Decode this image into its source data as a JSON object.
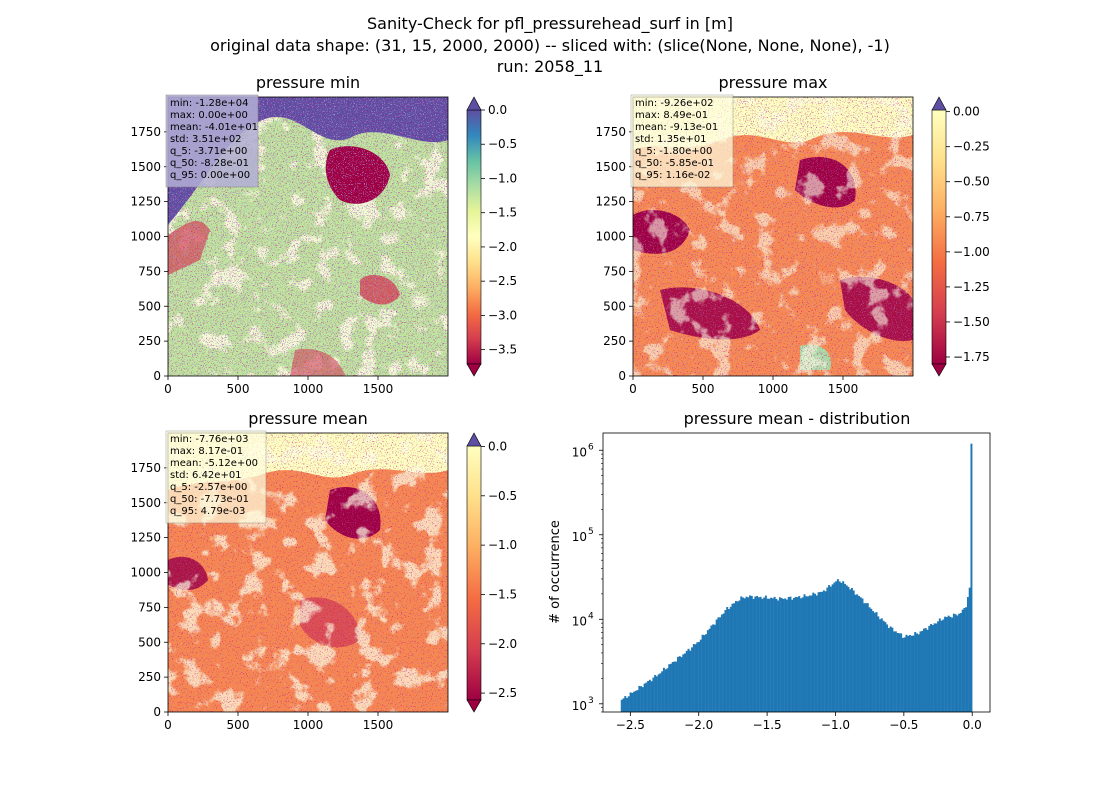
{
  "figure": {
    "suptitle_lines": [
      "Sanity-Check for pfl_pressurehead_surf in [m]",
      "original data shape: (31, 15, 2000, 2000) -- sliced with: (slice(None, None, None), -1)",
      "run: 2058_11"
    ]
  },
  "chart_data": [
    {
      "type": "heatmap",
      "title": "pressure min",
      "x_ticks": [
        "0",
        "500",
        "1000",
        "1500"
      ],
      "y_ticks": [
        "0",
        "250",
        "500",
        "750",
        "1000",
        "1250",
        "1500",
        "1750"
      ],
      "xlim": [
        0,
        2000
      ],
      "ylim": [
        0,
        2000
      ],
      "colormap": "Spectral",
      "colorbar": {
        "ticks": [
          "0.0",
          "−0.5",
          "−1.0",
          "−1.5",
          "−2.0",
          "−2.5",
          "−3.0",
          "−3.5"
        ],
        "tick_values": [
          0.0,
          -0.5,
          -1.0,
          -1.5,
          -2.0,
          -2.5,
          -3.0,
          -3.5
        ],
        "range": [
          -3.71,
          0.0
        ],
        "extend": "both"
      },
      "stats": [
        "min: -1.28e+04",
        "max: 0.00e+00",
        "mean: -4.01e+01",
        "std: 3.51e+02",
        "q_5: -3.71e+00",
        "q_50: -8.28e-01",
        "q_95: 0.00e+00"
      ]
    },
    {
      "type": "heatmap",
      "title": "pressure max",
      "x_ticks": [
        "0",
        "500",
        "1000",
        "1500"
      ],
      "y_ticks": [
        "0",
        "250",
        "500",
        "750",
        "1000",
        "1250",
        "1500",
        "1750"
      ],
      "xlim": [
        0,
        2000
      ],
      "ylim": [
        0,
        2000
      ],
      "colormap": "Spectral",
      "colorbar": {
        "ticks": [
          "0.00",
          "−0.25",
          "−0.50",
          "−0.75",
          "−1.00",
          "−1.25",
          "−1.50",
          "−1.75"
        ],
        "tick_values": [
          0.0,
          -0.25,
          -0.5,
          -0.75,
          -1.0,
          -1.25,
          -1.5,
          -1.75
        ],
        "range": [
          -1.8,
          0.0116
        ],
        "extend": "both"
      },
      "stats": [
        "min: -9.26e+02",
        "max: 8.49e-01",
        "mean: -9.13e-01",
        "std: 1.35e+01",
        "q_5: -1.80e+00",
        "q_50: -5.85e-01",
        "q_95: 1.16e-02"
      ]
    },
    {
      "type": "heatmap",
      "title": "pressure mean",
      "x_ticks": [
        "0",
        "500",
        "1000",
        "1500"
      ],
      "y_ticks": [
        "0",
        "250",
        "500",
        "750",
        "1000",
        "1250",
        "1500",
        "1750"
      ],
      "xlim": [
        0,
        2000
      ],
      "ylim": [
        0,
        2000
      ],
      "colormap": "Spectral",
      "colorbar": {
        "ticks": [
          "0.0",
          "−0.5",
          "−1.0",
          "−1.5",
          "−2.0",
          "−2.5"
        ],
        "tick_values": [
          0.0,
          -0.5,
          -1.0,
          -1.5,
          -2.0,
          -2.5
        ],
        "range": [
          -2.57,
          0.00479
        ],
        "extend": "both"
      },
      "stats": [
        "min: -7.76e+03",
        "max: 8.17e-01",
        "mean: -5.12e+00",
        "std: 6.42e+01",
        "q_5: -2.57e+00",
        "q_50: -7.73e-01",
        "q_95: 4.79e-03"
      ]
    },
    {
      "type": "bar",
      "subtype": "histogram",
      "title": "pressure mean - distribution",
      "xlabel": "",
      "ylabel": "# of occurrence",
      "yscale": "log",
      "xlim": [
        -2.7,
        0.13
      ],
      "ylim": [
        800,
        1600000
      ],
      "x_ticks": [
        -2.5,
        -2.0,
        -1.5,
        -1.0,
        -0.5,
        0.0
      ],
      "x_tick_labels": [
        "−2.5",
        "−2.0",
        "−1.5",
        "−1.0",
        "−0.5",
        "0.0"
      ],
      "y_ticks": [
        1000,
        10000,
        100000,
        1000000
      ],
      "y_tick_base": "10",
      "y_tick_exponents": [
        "3",
        "4",
        "5",
        "6"
      ],
      "bar_color": "#1f77b4",
      "profile": {
        "x": [
          -2.57,
          -2.5,
          -2.4,
          -2.3,
          -2.2,
          -2.1,
          -2.0,
          -1.9,
          -1.8,
          -1.7,
          -1.65,
          -1.6,
          -1.5,
          -1.4,
          -1.3,
          -1.2,
          -1.1,
          -1.05,
          -1.0,
          -0.97,
          -0.9,
          -0.8,
          -0.7,
          -0.6,
          -0.5,
          -0.4,
          -0.3,
          -0.2,
          -0.1,
          -0.05,
          -0.01,
          0.0
        ],
        "y": [
          1100,
          1300,
          1700,
          2200,
          3000,
          4000,
          5500,
          8500,
          13000,
          17500,
          18500,
          18500,
          18000,
          17500,
          18000,
          19000,
          21000,
          24000,
          28000,
          29000,
          24000,
          17000,
          11500,
          8000,
          6200,
          6800,
          8500,
          10500,
          11500,
          13500,
          27000,
          1200000
        ]
      }
    }
  ]
}
